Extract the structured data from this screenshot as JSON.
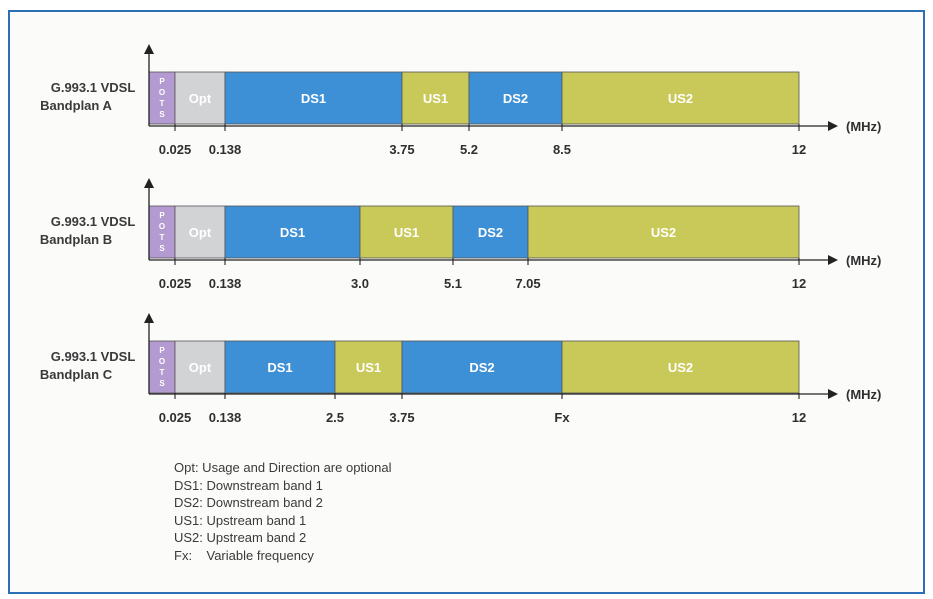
{
  "colors": {
    "frame": "#2c6fb7",
    "pots": "#b39ad0",
    "opt": "#d2d3d5",
    "ds": "#3d8fd6",
    "us": "#c9c95a",
    "axis": "#222222"
  },
  "unit": "(MHz)",
  "pots_letters": [
    "P",
    "O",
    "T",
    "S"
  ],
  "bandplans": [
    {
      "name_line1": "G.993.1 VDSL",
      "name_line2": "Bandplan A",
      "bands": [
        {
          "label": "",
          "kind": "pots"
        },
        {
          "label": "Opt",
          "kind": "opt"
        },
        {
          "label": "DS1",
          "kind": "ds"
        },
        {
          "label": "US1",
          "kind": "us"
        },
        {
          "label": "DS2",
          "kind": "ds"
        },
        {
          "label": "US2",
          "kind": "us"
        }
      ],
      "ticks": [
        "0.025",
        "0.138",
        "3.75",
        "5.2",
        "8.5",
        "12"
      ]
    },
    {
      "name_line1": "G.993.1 VDSL",
      "name_line2": "Bandplan B",
      "bands": [
        {
          "label": "",
          "kind": "pots"
        },
        {
          "label": "Opt",
          "kind": "opt"
        },
        {
          "label": "DS1",
          "kind": "ds"
        },
        {
          "label": "US1",
          "kind": "us"
        },
        {
          "label": "DS2",
          "kind": "ds"
        },
        {
          "label": "US2",
          "kind": "us"
        }
      ],
      "ticks": [
        "0.025",
        "0.138",
        "3.0",
        "5.1",
        "7.05",
        "12"
      ]
    },
    {
      "name_line1": "G.993.1 VDSL",
      "name_line2": "Bandplan C",
      "bands": [
        {
          "label": "",
          "kind": "pots"
        },
        {
          "label": "Opt",
          "kind": "opt"
        },
        {
          "label": "DS1",
          "kind": "ds"
        },
        {
          "label": "US1",
          "kind": "us"
        },
        {
          "label": "DS2",
          "kind": "ds"
        },
        {
          "label": "US2",
          "kind": "us"
        }
      ],
      "ticks": [
        "0.025",
        "0.138",
        "2.5",
        "3.75",
        "Fx",
        "12"
      ]
    }
  ],
  "legend": [
    "Opt: Usage and Direction are optional",
    "DS1: Downstream band 1",
    "DS2: Downstream band 2",
    "US1: Upstream band 1",
    "US2: Upstream band 2",
    "Fx:    Variable frequency"
  ]
}
